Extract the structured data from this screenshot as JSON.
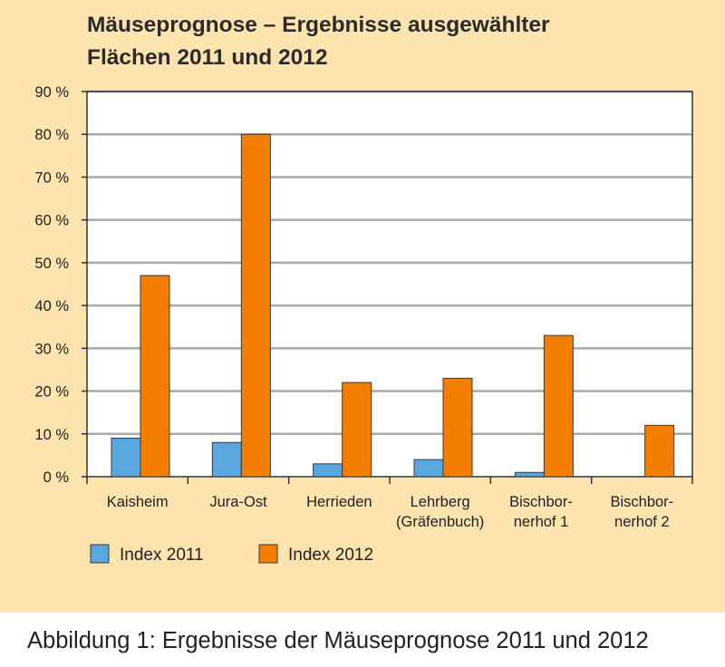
{
  "colors": {
    "panel_background": "#fde3ad",
    "plot_background": "#ffffff",
    "gridline": "#a8a8ae",
    "axis": "#333333",
    "index_2011": "#5aa7e0",
    "index_2012": "#f47e00",
    "bar_outline": "#3a3a3a"
  },
  "chart_data": {
    "type": "bar",
    "title_lines": [
      "Mäuseprognose – Ergebnisse ausgewählter",
      "Flächen 2011 und 2012"
    ],
    "categories": [
      [
        "Kaisheim"
      ],
      [
        "Jura-Ost"
      ],
      [
        "Herrieden"
      ],
      [
        "Lehrberg",
        "(Gräfenbuch)"
      ],
      [
        "Bischbor-",
        "nerhof 1"
      ],
      [
        "Bischbor-",
        "nerhof 2"
      ]
    ],
    "series": [
      {
        "name": "Index 2011",
        "color": "#5aa7e0",
        "values": [
          9,
          8,
          3,
          4,
          1,
          0
        ]
      },
      {
        "name": "Index 2012",
        "color": "#f47e00",
        "values": [
          47,
          80,
          22,
          23,
          33,
          12
        ]
      }
    ],
    "ylim": [
      0,
      90
    ],
    "y_ticks": [
      0,
      10,
      20,
      30,
      40,
      50,
      60,
      70,
      80,
      90
    ],
    "y_tick_labels": [
      "0 %",
      "10 %",
      "20 %",
      "30 %",
      "40 %",
      "50 %",
      "60 %",
      "70 %",
      "80 %",
      "90 %"
    ],
    "grid": true,
    "legend_position": "bottom-left"
  },
  "caption": "Abbildung 1: Ergebnisse der Mäuseprognose 2011 und 2012"
}
